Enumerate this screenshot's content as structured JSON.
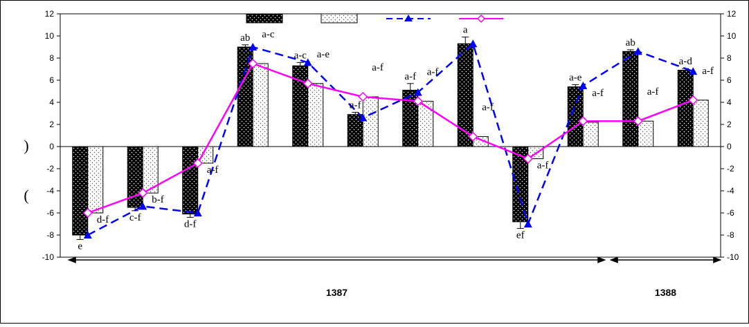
{
  "colors": {
    "bar_a": "#000000",
    "bar_b": "#ffffff",
    "line_a": "#0000ff",
    "line_b": "#ff00ff"
  },
  "y_axis_left_label": "(",
  "y_axis_left_label_2": ")",
  "chart_data": {
    "type": "bar",
    "ylim": [
      -10,
      12
    ],
    "yticks": [
      -10,
      -8,
      -6,
      -4,
      -2,
      0,
      2,
      4,
      6,
      8,
      10,
      12
    ],
    "groups": 12,
    "series": [
      {
        "kind": "bar",
        "pattern": "dark-dots",
        "values": [
          -8.0,
          -5.5,
          -6.1,
          9.0,
          7.3,
          2.9,
          5.1,
          9.3,
          -6.8,
          5.4,
          8.6,
          6.9
        ],
        "errors": [
          0.4,
          0.3,
          0.3,
          0.2,
          0.3,
          0.2,
          0.6,
          0.6,
          0.6,
          0.2,
          0.15,
          0.15
        ],
        "labels": [
          "e",
          "c-f",
          "d-f",
          "ab",
          "a-c",
          "a-f",
          "a-f",
          "a",
          "ef",
          "a-e",
          "ab",
          "a-d"
        ]
      },
      {
        "kind": "bar",
        "pattern": "light-dots",
        "values": [
          -6.0,
          -4.2,
          -1.5,
          7.5,
          5.7,
          4.5,
          4.1,
          0.9,
          -1.1,
          2.2,
          2.3,
          4.2
        ],
        "labels": [
          "d-f",
          "b-f",
          "a-f",
          "a-c",
          "a-e",
          "a-f",
          "a-f",
          "a-f",
          "a-f",
          "a-f",
          "a-f",
          "a-f"
        ]
      },
      {
        "kind": "line",
        "style": "dashed",
        "marker": "triangle",
        "values": [
          -8.0,
          -5.4,
          -6.0,
          9.0,
          7.6,
          2.6,
          4.9,
          9.3,
          -7.0,
          5.5,
          8.6,
          6.8
        ]
      },
      {
        "kind": "line",
        "style": "solid",
        "marker": "diamond",
        "values": [
          -6.0,
          -4.2,
          -1.5,
          7.5,
          5.7,
          4.5,
          4.1,
          0.9,
          -1.1,
          2.3,
          2.3,
          4.2
        ]
      }
    ],
    "periods": [
      {
        "label": "1387",
        "from": 0,
        "to": 9
      },
      {
        "label": "1388",
        "from": 10,
        "to": 11
      }
    ],
    "legend_placement": "top-center"
  }
}
